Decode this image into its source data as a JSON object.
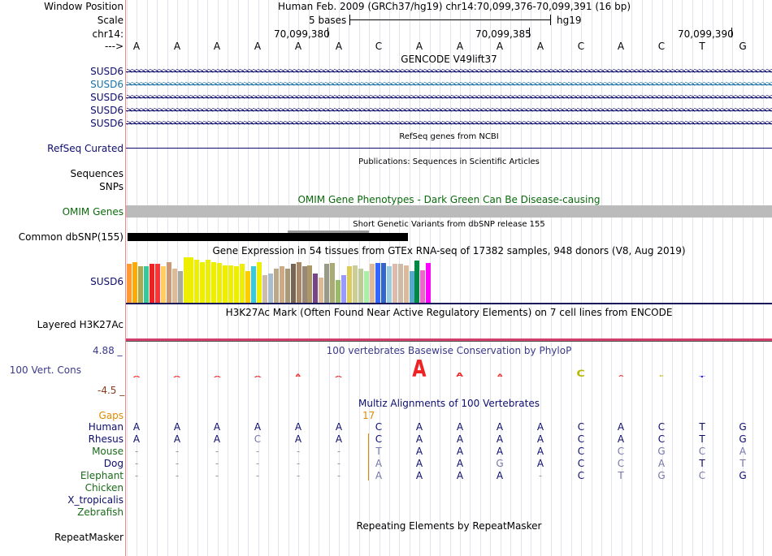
{
  "header": {
    "window_label": "Window Position",
    "window_value": "Human Feb. 2009 (GRCh37/hg19)   chr14:70,099,376-70,099,391 (16 bp)",
    "scale_label": "Scale",
    "scale_text": "5 bases",
    "scale_assembly": "hg19",
    "chrom_label": "chr14:",
    "pos1": "70,099,380",
    "pos2": "70,099,385",
    "pos3": "70,099,390",
    "arrow_label": "--->"
  },
  "sequence": [
    "A",
    "A",
    "A",
    "A",
    "A",
    "A",
    "C",
    "A",
    "A",
    "A",
    "A",
    "C",
    "A",
    "C",
    "T",
    "G"
  ],
  "gencode": {
    "title": "GENCODE V49lift37",
    "rows": [
      {
        "label": "SUSD6",
        "color": "#0d0d6e"
      },
      {
        "label": "SUSD6",
        "color": "#1a73a8"
      },
      {
        "label": "SUSD6",
        "color": "#0d0d6e"
      },
      {
        "label": "SUSD6",
        "color": "#0d0d6e"
      },
      {
        "label": "SUSD6",
        "color": "#0d0d6e"
      }
    ]
  },
  "refseq": {
    "title": "RefSeq genes from NCBI",
    "label": "RefSeq Curated"
  },
  "publications": {
    "title": "Publications: Sequences in Scientific Articles",
    "label": "Sequences"
  },
  "snps": {
    "label": "SNPs"
  },
  "omim": {
    "title": "OMIM Gene Phenotypes - Dark Green Can Be Disease-causing",
    "label": "OMIM Genes",
    "color": "#0b6b0b"
  },
  "dbsnp": {
    "title": "Short Genetic Variants from dbSNP release 155",
    "label": "Common dbSNP(155)"
  },
  "gtex": {
    "title": "Gene Expression in 54 tissues from GTEx RNA-seq of 17382 samples, 948 donors (V8, Aug 2019)",
    "label": "SUSD6",
    "bars": [
      {
        "color": "#ff9933",
        "value": 0.85
      },
      {
        "color": "#ffaa00",
        "value": 0.9
      },
      {
        "color": "#aaaa55",
        "value": 0.8
      },
      {
        "color": "#33cc99",
        "value": 0.8
      },
      {
        "color": "#ee2222",
        "value": 0.85
      },
      {
        "color": "#ff3333",
        "value": 0.85
      },
      {
        "color": "#ffcc66",
        "value": 0.8
      },
      {
        "color": "#cc9977",
        "value": 0.9
      },
      {
        "color": "#ddbb99",
        "value": 0.75
      },
      {
        "color": "#aaaa99",
        "value": 0.7
      },
      {
        "color": "#eeee00",
        "value": 1.0
      },
      {
        "color": "#eeee00",
        "value": 1.0
      },
      {
        "color": "#eeee00",
        "value": 0.95
      },
      {
        "color": "#eeee00",
        "value": 0.9
      },
      {
        "color": "#eeee00",
        "value": 0.95
      },
      {
        "color": "#eeee00",
        "value": 0.9
      },
      {
        "color": "#eeee00",
        "value": 0.88
      },
      {
        "color": "#eeee00",
        "value": 0.82
      },
      {
        "color": "#eeee00",
        "value": 0.82
      },
      {
        "color": "#eeee00",
        "value": 0.8
      },
      {
        "color": "#eeee00",
        "value": 0.85
      },
      {
        "color": "#ffcc00",
        "value": 0.7
      },
      {
        "color": "#33ccdd",
        "value": 0.8
      },
      {
        "color": "#eeee00",
        "value": 0.9
      },
      {
        "color": "#ccbbaa",
        "value": 0.6
      },
      {
        "color": "#aabbcc",
        "value": 0.65
      },
      {
        "color": "#bbaa88",
        "value": 0.75
      },
      {
        "color": "#ccaa88",
        "value": 0.8
      },
      {
        "color": "#aa9977",
        "value": 0.75
      },
      {
        "color": "#776655",
        "value": 0.85
      },
      {
        "color": "#aa8866",
        "value": 0.9
      },
      {
        "color": "#998877",
        "value": 0.8
      },
      {
        "color": "#aa9966",
        "value": 0.82
      },
      {
        "color": "#774488",
        "value": 0.65
      },
      {
        "color": "#ddbb99",
        "value": 0.55
      },
      {
        "color": "#999988",
        "value": 0.85
      },
      {
        "color": "#aaaa77",
        "value": 0.88
      },
      {
        "color": "#99bb66",
        "value": 0.5
      },
      {
        "color": "#9999ff",
        "value": 0.6
      },
      {
        "color": "#ddcc55",
        "value": 0.8
      },
      {
        "color": "#cccc99",
        "value": 0.82
      },
      {
        "color": "#bbcc99",
        "value": 0.75
      },
      {
        "color": "#aaeeaa",
        "value": 0.7
      },
      {
        "color": "#ddbb99",
        "value": 0.85
      },
      {
        "color": "#3366ff",
        "value": 0.88
      },
      {
        "color": "#3366cc",
        "value": 0.88
      },
      {
        "color": "#99ccdd",
        "value": 0.8
      },
      {
        "color": "#ddbbaa",
        "value": 0.85
      },
      {
        "color": "#ccbbaa",
        "value": 0.85
      },
      {
        "color": "#ddbb99",
        "value": 0.82
      },
      {
        "color": "#55aacc",
        "value": 0.7
      },
      {
        "color": "#008844",
        "value": 0.92
      },
      {
        "color": "#ee66cc",
        "value": 0.72
      },
      {
        "color": "#ff00ff",
        "value": 0.88
      }
    ]
  },
  "h3k27ac": {
    "title": "H3K27Ac Mark (Often Found Near Active Regulatory Elements) on 7 cell lines from ENCODE",
    "label": "Layered H3K27Ac",
    "color": "#d0406a"
  },
  "phylop": {
    "title": "100 vertebrates Basewise Conservation by PhyloP",
    "label": "100 Vert. Cons",
    "max": "4.88 _",
    "min": "-4.5 _",
    "color": "#3a3a8a",
    "scores": [
      -0.3,
      -0.2,
      -0.2,
      -0.3,
      0.6,
      -0.2,
      0,
      1.6,
      0.8,
      0.6,
      0,
      1.0,
      0.3,
      0.3,
      -0.2,
      0
    ]
  },
  "multiz": {
    "title": "Multiz Alignments of 100 Vertebrates",
    "gaps_label": "Gaps",
    "gaps_value": "17",
    "species": [
      {
        "name": "Human",
        "color": "#0d0d6e",
        "bases": [
          "A",
          "A",
          "A",
          "A",
          "A",
          "A",
          "C",
          "A",
          "A",
          "A",
          "A",
          "C",
          "A",
          "C",
          "T",
          "G"
        ]
      },
      {
        "name": "Rhesus",
        "color": "#0d0d6e",
        "bases": [
          "A",
          "A",
          "A",
          "C",
          "A",
          "A",
          "C",
          "A",
          "A",
          "A",
          "A",
          "C",
          "A",
          "C",
          "T",
          "G"
        ]
      },
      {
        "name": "Mouse",
        "color": "#1a6b1a",
        "bases": [
          "-",
          "-",
          "-",
          "-",
          "-",
          "-",
          "T",
          "A",
          "A",
          "A",
          "A",
          "C",
          "C",
          "G",
          "C",
          "A"
        ]
      },
      {
        "name": "Dog",
        "color": "#0d0d6e",
        "bases": [
          "-",
          "-",
          "-",
          "-",
          "-",
          "-",
          "A",
          "A",
          "A",
          "G",
          "A",
          "C",
          "C",
          "A",
          "T",
          "T"
        ]
      },
      {
        "name": "Elephant",
        "color": "#1a6b1a",
        "bases": [
          "-",
          "-",
          "-",
          "-",
          "-",
          "-",
          "A",
          "A",
          "A",
          "A",
          "-",
          "C",
          "T",
          "G",
          "C",
          "G"
        ]
      },
      {
        "name": "Chicken",
        "color": "#1a6b1a",
        "bases": []
      },
      {
        "name": "X_tropicalis",
        "color": "#0d0d6e",
        "bases": []
      },
      {
        "name": "Zebrafish",
        "color": "#1a6b1a",
        "bases": []
      }
    ]
  },
  "repeatmasker": {
    "title": "Repeating Elements by RepeatMasker",
    "label": "RepeatMasker"
  }
}
